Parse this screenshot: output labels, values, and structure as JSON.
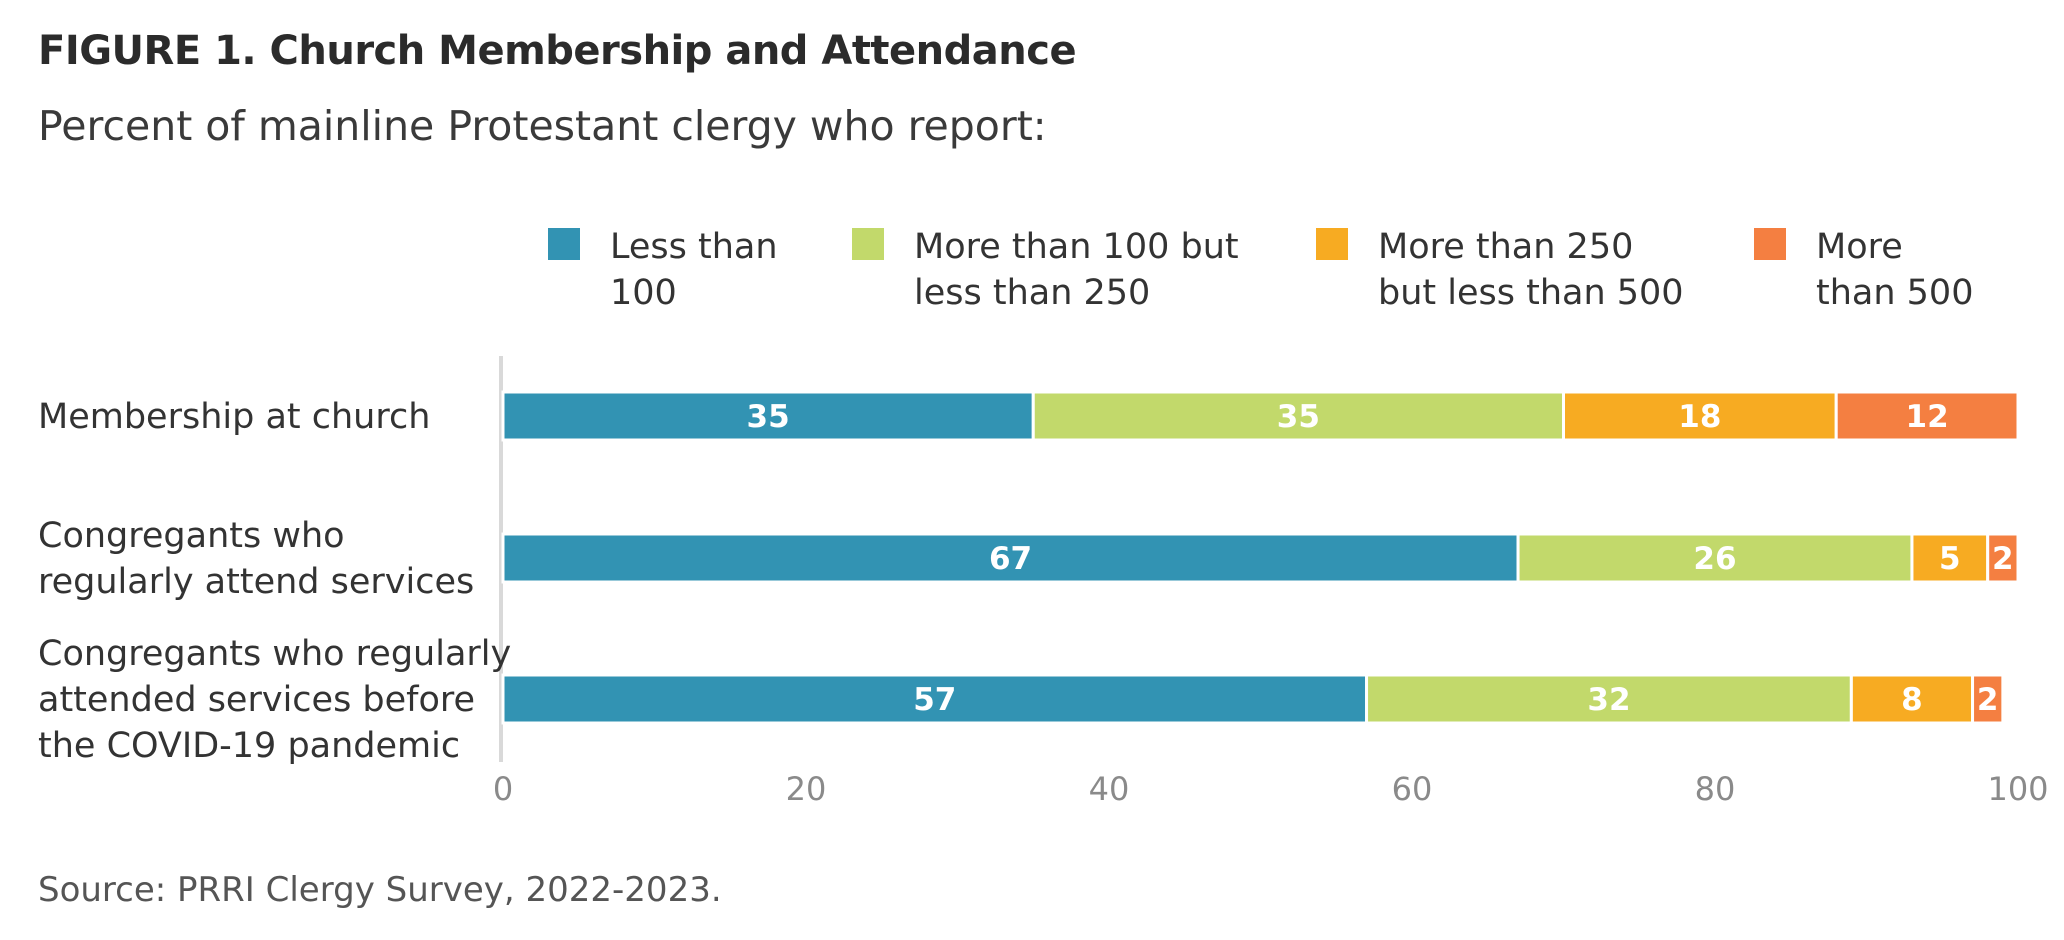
{
  "title": "FIGURE 1. Church Membership and Attendance",
  "subtitle": "Percent of mainline Protestant clergy who report:",
  "source": "Source: PRRI Clergy Survey, 2022-2023.",
  "legend": [
    {
      "line1": "Less than",
      "line2": "100",
      "color": "#3293b3"
    },
    {
      "line1": "More than 100 but",
      "line2": "less than 250",
      "color": "#c2d96b"
    },
    {
      "line1": "More than 250",
      "line2": "but less than 500",
      "color": "#f7ab22"
    },
    {
      "line1": "More",
      "line2": "than 500",
      "color": "#f47f41"
    }
  ],
  "chart_data": {
    "type": "bar",
    "orientation": "horizontal",
    "stacked": true,
    "categories": [
      [
        "Membership at church"
      ],
      [
        "Congregants who",
        "regularly attend services"
      ],
      [
        "Congregants who regularly",
        "attended services before",
        "the COVID-19 pandemic"
      ]
    ],
    "series": [
      {
        "name": "Less than 100",
        "color": "#3293b3",
        "values": [
          35,
          67,
          57
        ]
      },
      {
        "name": "More than 100 but less than 250",
        "color": "#c2d96b",
        "values": [
          35,
          26,
          32
        ]
      },
      {
        "name": "More than 250 but less than 500",
        "color": "#f7ab22",
        "values": [
          18,
          5,
          8
        ]
      },
      {
        "name": "More than 500",
        "color": "#f47f41",
        "values": [
          12,
          2,
          2
        ]
      }
    ],
    "xlim": [
      0,
      100
    ],
    "xticks": [
      0,
      20,
      40,
      60,
      80,
      100
    ],
    "xlabel": "",
    "ylabel": "",
    "grid": false,
    "legend_position": "top"
  }
}
